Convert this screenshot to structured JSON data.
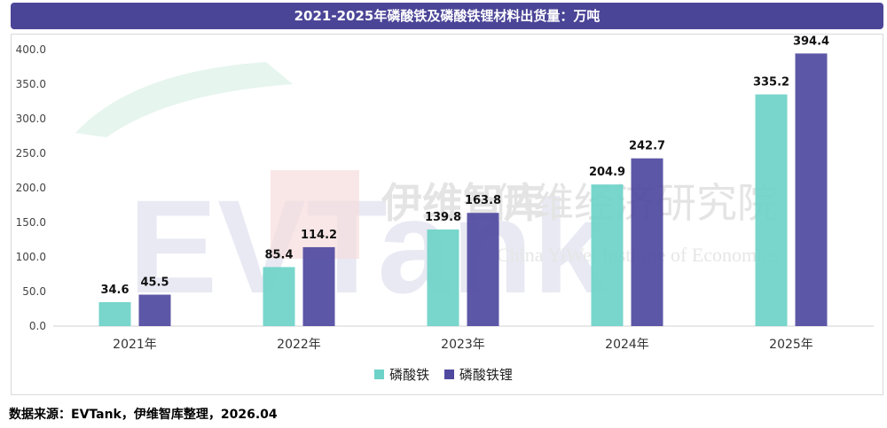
{
  "title": "2021-2025年磷酸铁及磷酸铁锂材料出货量：万吨",
  "source": "数据来源：EVTank，伊维智库整理，2026.04",
  "colors": {
    "title_bg": "#4b4597",
    "series1": "#6dd2c8",
    "series2": "#4f49a0"
  },
  "watermark": {
    "logo_text": "EVTank",
    "cn_short": "伊维智库",
    "cn_full": "伊维经济研究院",
    "en_full": "China YiWei Institute of Economics"
  },
  "chart_data": {
    "type": "bar",
    "categories": [
      "2021年",
      "2022年",
      "2023年",
      "2024年",
      "2025年"
    ],
    "series": [
      {
        "name": "磷酸铁",
        "values": [
          34.6,
          85.4,
          139.8,
          204.9,
          335.2
        ]
      },
      {
        "name": "磷酸铁锂",
        "values": [
          45.5,
          114.2,
          163.8,
          242.7,
          394.4
        ]
      }
    ],
    "ylim": [
      0,
      400
    ],
    "yticks": [
      "0.0",
      "50.0",
      "100.0",
      "150.0",
      "200.0",
      "250.0",
      "300.0",
      "350.0",
      "400.0"
    ],
    "legend_position": "bottom",
    "grid": false
  }
}
